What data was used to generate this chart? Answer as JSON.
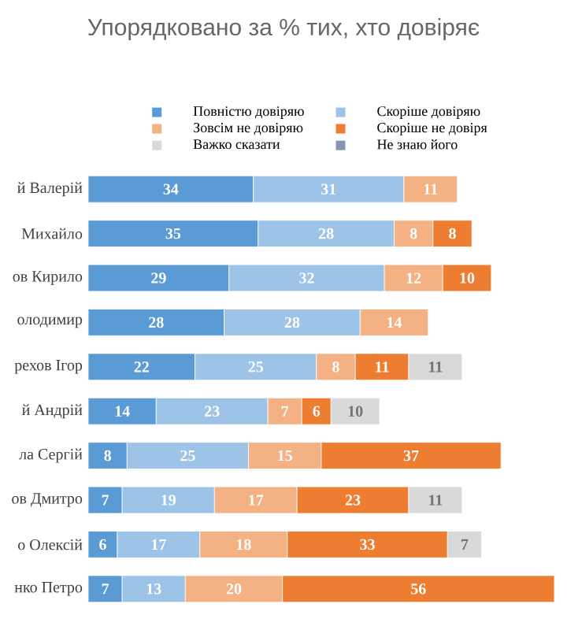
{
  "chart_data": {
    "type": "bar",
    "orientation": "horizontal",
    "stacked": true,
    "title": "Упорядковано за % тих, хто довіряє",
    "categories": [
      "й Валерій",
      "Михайло",
      "ов Кирило",
      "олодимир",
      "рехов Ігор",
      "й Андрій",
      "ла Сергій",
      "ов Дмитро",
      "о Олексій",
      "нко Петро"
    ],
    "series": [
      {
        "name": "Повністю довіряю",
        "color": "#5b9bd5",
        "values": [
          34,
          35,
          29,
          28,
          22,
          14,
          8,
          7,
          6,
          7
        ]
      },
      {
        "name": "Скоріше довіряю",
        "color": "#9dc3e6",
        "values": [
          31,
          28,
          32,
          28,
          25,
          23,
          25,
          19,
          17,
          13
        ]
      },
      {
        "name": "Зовсім не довіряю",
        "color": "#f4b183",
        "values": [
          11,
          8,
          12,
          14,
          8,
          7,
          15,
          17,
          18,
          20
        ]
      },
      {
        "name": "Скоріше не довіря",
        "color": "#ed7d31",
        "values": [
          null,
          8,
          10,
          null,
          11,
          6,
          37,
          23,
          33,
          56
        ]
      },
      {
        "name": "Важко сказати",
        "color": "#d9d9d9",
        "values": [
          null,
          null,
          null,
          null,
          11,
          10,
          null,
          11,
          7,
          null
        ]
      },
      {
        "name": "Не знаю його",
        "color": "#8497b0",
        "values": [
          null,
          null,
          null,
          null,
          null,
          null,
          null,
          null,
          null,
          null
        ]
      }
    ],
    "data_labels": true,
    "legend": "top"
  }
}
